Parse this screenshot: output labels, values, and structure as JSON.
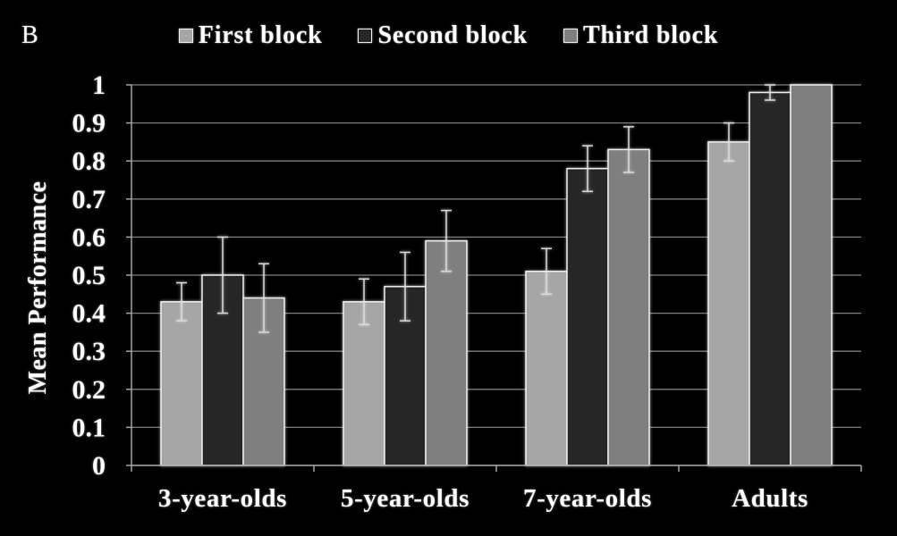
{
  "panel_label": "B",
  "colors": {
    "background": "#000000",
    "text": "#ffffff",
    "grid": "#7f7f7f",
    "axis": "#a6a6a6",
    "bar_outline": "#f0f0f0",
    "error_bar": "#dcdcdc"
  },
  "chart_data": {
    "type": "bar",
    "categories": [
      "3-year-olds",
      "5-year-olds",
      "7-year-olds",
      "Adults"
    ],
    "series": [
      {
        "name": "First block",
        "color": "#a6a6a6",
        "values": [
          0.43,
          0.43,
          0.51,
          0.85
        ],
        "error": [
          0.05,
          0.06,
          0.06,
          0.05
        ]
      },
      {
        "name": "Second block",
        "color": "#262626",
        "values": [
          0.5,
          0.47,
          0.78,
          0.98
        ],
        "error": [
          0.1,
          0.09,
          0.06,
          0.02
        ]
      },
      {
        "name": "Third block",
        "color": "#7f7f7f",
        "values": [
          0.44,
          0.59,
          0.83,
          1.0
        ],
        "error": [
          0.09,
          0.08,
          0.06,
          0
        ]
      }
    ],
    "xlabel": "",
    "ylabel": "Mean Performance",
    "ylim": [
      0,
      1
    ],
    "yticks": [
      "0",
      "0.1",
      "0.2",
      "0.3",
      "0.4",
      "0.5",
      "0.6",
      "0.7",
      "0.8",
      "0.9",
      "1"
    ],
    "grid": true,
    "legend_position": "top"
  }
}
